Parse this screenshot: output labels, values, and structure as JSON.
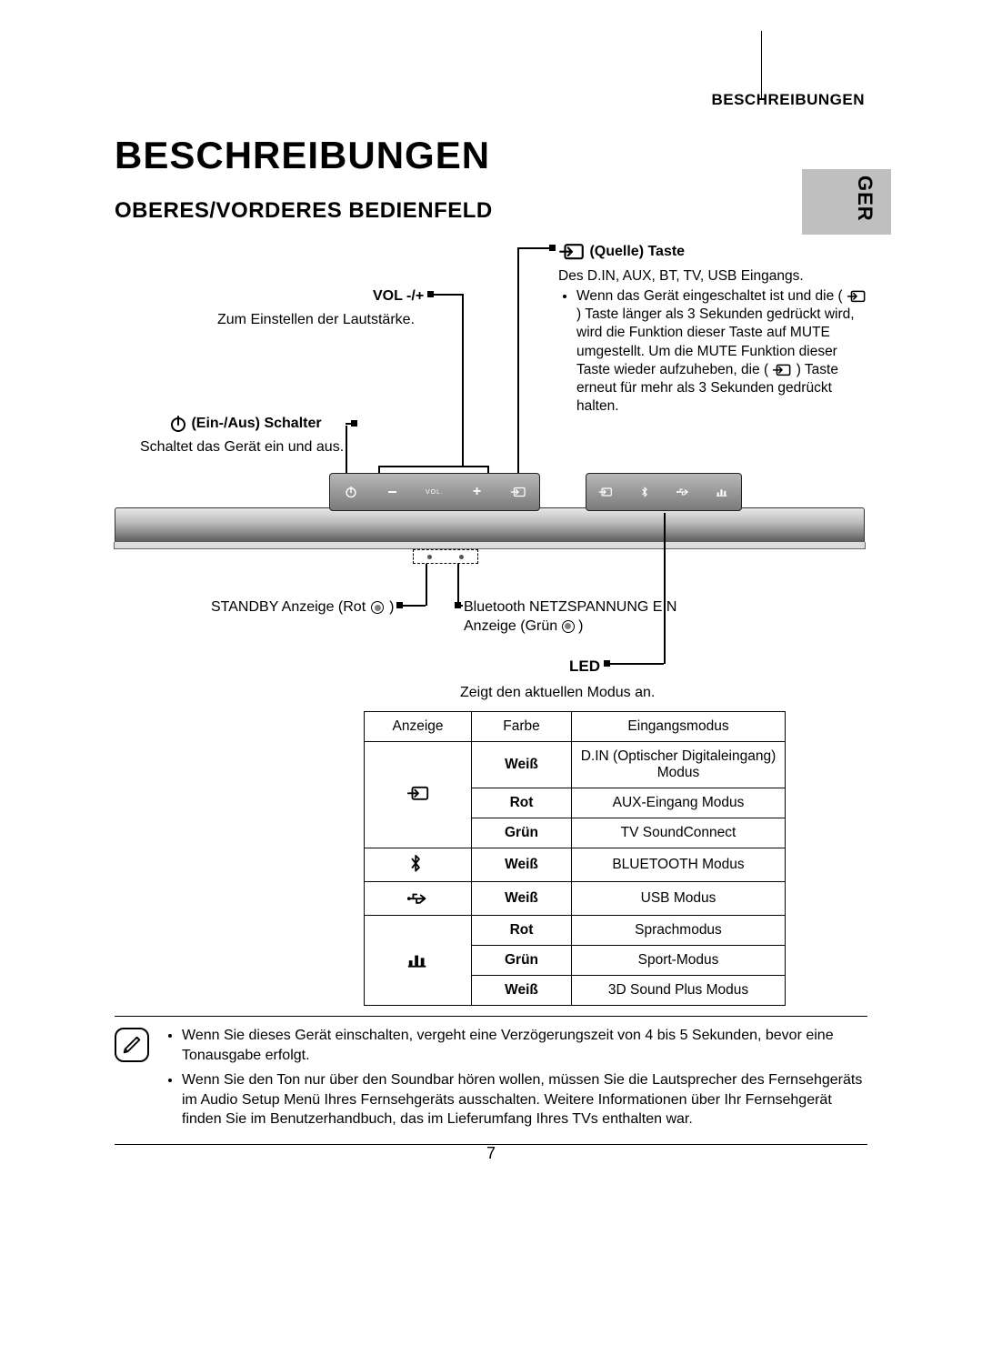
{
  "header": {
    "right": "BESCHREIBUNGEN"
  },
  "sideTab": "GER",
  "h1": "BESCHREIBUNGEN",
  "h2": "OBERES/VORDERES BEDIENFELD",
  "quelle": {
    "title": "(Quelle) Taste",
    "line1": "Des D.IN, AUX, BT, TV, USB Eingangs.",
    "bullet_pre": "Wenn das Gerät eingeschaltet ist und die (",
    "bullet_mid": ") Taste länger als 3 Sekunden gedrückt wird, wird die Funktion dieser Taste auf MUTE umgestellt. Um die MUTE Funktion dieser Taste wieder aufzuheben, die (",
    "bullet_post": ") Taste erneut für mehr als 3 Sekunden gedrückt halten."
  },
  "vol": {
    "title": "VOL -/+",
    "body": "Zum Einstellen der Lautstärke."
  },
  "power": {
    "title": "Ein-/Aus) Schalter",
    "body": "Schaltet das Gerät ein und aus."
  },
  "panel": {
    "vol_label": "VOL."
  },
  "standby": {
    "pre": "STANDBY Anzeige (Rot",
    "post": ")"
  },
  "btpower": {
    "line1": "Bluetooth NETZSPANNUNG EIN",
    "line2_pre": "Anzeige (Grün",
    "line2_post": ")"
  },
  "led": {
    "title": "LED",
    "body": "Zeigt den aktuellen Modus an."
  },
  "table": {
    "columns": [
      "Anzeige",
      "Farbe",
      "Eingangsmodus"
    ],
    "groups": [
      {
        "icon": "source",
        "rows": [
          {
            "color": "Weiß",
            "mode": "D.IN (Optischer Digitaleingang) Modus"
          },
          {
            "color": "Rot",
            "mode": "AUX-Eingang Modus"
          },
          {
            "color": "Grün",
            "mode": "TV SoundConnect"
          }
        ]
      },
      {
        "icon": "bluetooth",
        "rows": [
          {
            "color": "Weiß",
            "mode": "BLUETOOTH Modus"
          }
        ]
      },
      {
        "icon": "usb",
        "rows": [
          {
            "color": "Weiß",
            "mode": "USB Modus"
          }
        ]
      },
      {
        "icon": "eq",
        "rows": [
          {
            "color": "Rot",
            "mode": "Sprachmodus"
          },
          {
            "color": "Grün",
            "mode": "Sport-Modus"
          },
          {
            "color": "Weiß",
            "mode": "3D Sound Plus Modus"
          }
        ]
      }
    ]
  },
  "notes": {
    "items": [
      "Wenn Sie dieses Gerät einschalten, vergeht eine Verzögerungszeit von 4 bis 5 Sekunden, bevor eine Tonausgabe erfolgt.",
      "Wenn Sie den Ton nur über den Soundbar hören wollen, müssen Sie die Lautsprecher des Fernsehgeräts im Audio Setup Menü Ihres Fernsehgeräts ausschalten. Weitere Informationen über Ihr Fernsehgerät finden Sie im Benutzerhandbuch, das im Lieferumfang Ihres TVs enthalten war."
    ]
  },
  "pageNumber": "7",
  "colors": {
    "tab_bg": "#bfbfbf",
    "text": "#000000",
    "rule": "#000000"
  },
  "fonts": {
    "body_pt": 16,
    "h1_pt": 42,
    "h2_pt": 24
  }
}
